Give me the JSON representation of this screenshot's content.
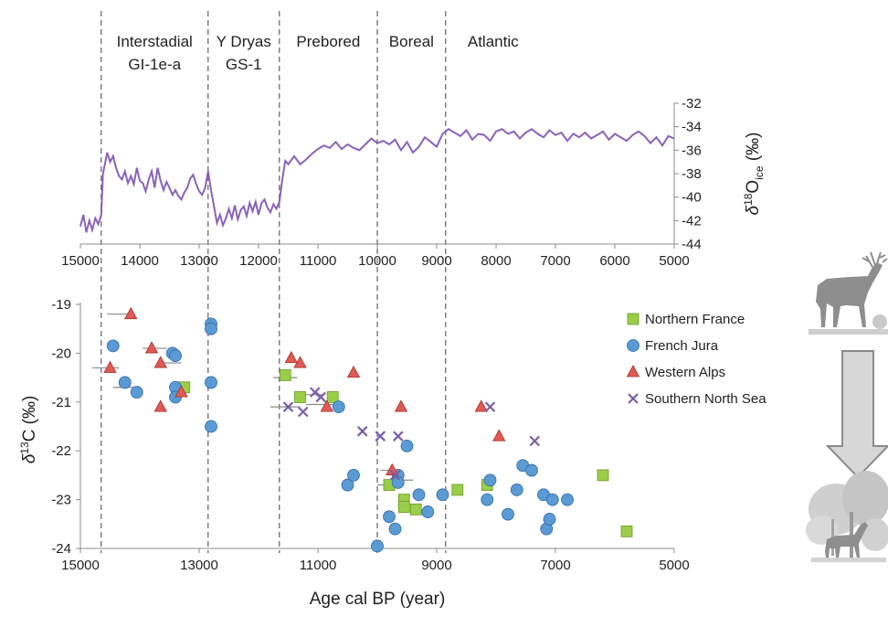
{
  "chart_data": [
    {
      "type": "line",
      "ylabel_main": "δ",
      "ylabel_sup": "18",
      "ylabel_rest": "O",
      "ylabel_sub": "ice",
      "ylabel_unit": " (‰)",
      "xlim": [
        15000,
        5000
      ],
      "ylim": [
        -44,
        -32
      ],
      "x_ticks": [
        "15000",
        "14000",
        "13000",
        "12000",
        "11000",
        "10000",
        "9000",
        "8000",
        "7000",
        "6000",
        "5000"
      ],
      "y_ticks": [
        "-32",
        "-34",
        "-36",
        "-38",
        "-40",
        "-42",
        "-44"
      ],
      "periods": [
        {
          "line1": "Interstadial",
          "line2": "GI-1e-a"
        },
        {
          "line1": "Y Dryas",
          "line2": "GS-1"
        },
        {
          "line1": "Prebored",
          "line2": ""
        },
        {
          "line1": "Boreal",
          "line2": ""
        },
        {
          "line1": "Atlantic",
          "line2": ""
        }
      ],
      "boundaries": [
        14650,
        12850,
        11650,
        10000,
        8850
      ],
      "color": "#8a63b8",
      "series": [
        {
          "x": [
            15000,
            14950,
            14900,
            14850,
            14800,
            14750,
            14700,
            14650,
            14620,
            14580,
            14550,
            14500,
            14450,
            14400,
            14350,
            14300,
            14250,
            14200,
            14150,
            14100,
            14050,
            14000,
            13950,
            13900,
            13850,
            13800,
            13750,
            13700,
            13650,
            13600,
            13550,
            13500,
            13450,
            13400,
            13350,
            13300,
            13250,
            13200,
            13150,
            13100,
            13050,
            13000,
            12950,
            12900,
            12850,
            12800,
            12750,
            12700,
            12650,
            12600,
            12550,
            12500,
            12450,
            12400,
            12350,
            12300,
            12250,
            12200,
            12150,
            12100,
            12050,
            12000,
            11950,
            11900,
            11850,
            11800,
            11750,
            11700,
            11650,
            11600,
            11550,
            11500,
            11400,
            11300,
            11200,
            11100,
            11000,
            10900,
            10800,
            10700,
            10600,
            10500,
            10400,
            10300,
            10200,
            10100,
            10000,
            9900,
            9800,
            9700,
            9600,
            9500,
            9400,
            9300,
            9200,
            9100,
            9000,
            8900,
            8800,
            8700,
            8600,
            8500,
            8400,
            8300,
            8200,
            8100,
            8000,
            7900,
            7800,
            7700,
            7600,
            7500,
            7400,
            7300,
            7200,
            7100,
            7000,
            6900,
            6800,
            6700,
            6600,
            6500,
            6400,
            6300,
            6200,
            6100,
            6000,
            5900,
            5800,
            5700,
            5600,
            5500,
            5400,
            5300,
            5200,
            5100,
            5000
          ],
          "y": [
            -42.5,
            -41.5,
            -43,
            -42,
            -42.8,
            -41.8,
            -42.3,
            -41.5,
            -38,
            -37,
            -36.2,
            -37,
            -36.5,
            -37.5,
            -38.2,
            -38.5,
            -37.8,
            -38.8,
            -38.2,
            -38.9,
            -37.5,
            -38.6,
            -38.8,
            -39.5,
            -38.5,
            -37.8,
            -39.2,
            -37.5,
            -38.6,
            -39.4,
            -38.7,
            -39.2,
            -39.8,
            -39.4,
            -39.9,
            -40.2,
            -39.6,
            -39.2,
            -38.4,
            -38.1,
            -38.9,
            -39.5,
            -39.8,
            -39.2,
            -37.8,
            -39.4,
            -40.8,
            -42.2,
            -41.5,
            -42.4,
            -41.8,
            -41,
            -41.8,
            -40.7,
            -41.9,
            -41.1,
            -40.8,
            -41.6,
            -40.5,
            -41.2,
            -40.4,
            -41.5,
            -40.5,
            -40.2,
            -40.9,
            -41.3,
            -40.6,
            -41,
            -40.4,
            -38.5,
            -36.9,
            -37.2,
            -36.5,
            -37.2,
            -36.8,
            -36.3,
            -35.9,
            -35.6,
            -35.8,
            -35.3,
            -35.9,
            -35.5,
            -35.8,
            -36,
            -35.5,
            -35,
            -35.4,
            -35.2,
            -35.5,
            -35.1,
            -36,
            -35.3,
            -36.2,
            -35.7,
            -34.9,
            -35.3,
            -35.7,
            -34.6,
            -34.2,
            -34.5,
            -34.8,
            -34.3,
            -35.1,
            -34.6,
            -34.7,
            -35.2,
            -34.4,
            -34.2,
            -34.6,
            -34.4,
            -35,
            -34.5,
            -34.2,
            -34.6,
            -34.9,
            -34.3,
            -34.7,
            -34.5,
            -35.2,
            -34.6,
            -34.9,
            -34.5,
            -35,
            -34.7,
            -34.4,
            -35.1,
            -34.6,
            -34.9,
            -35.2,
            -34.7,
            -34.4,
            -34.8,
            -35.4,
            -34.9,
            -35.6,
            -34.8,
            -35
          ]
        }
      ]
    },
    {
      "type": "scatter",
      "xlabel": "Age cal BP (year)",
      "ylabel_main": "δ",
      "ylabel_sup": "13",
      "ylabel_rest": "C (‰)",
      "xlim": [
        15000,
        5000
      ],
      "ylim": [
        -24,
        -19
      ],
      "x_ticks": [
        "15000",
        "13000",
        "11000",
        "9000",
        "7000",
        "5000"
      ],
      "y_ticks": [
        "-19",
        "-20",
        "-21",
        "-22",
        "-23",
        "-24"
      ],
      "legend_position": "top-right",
      "series": [
        {
          "name": "Northern France",
          "marker": "square",
          "color": "#9acd48",
          "points": [
            [
              13250,
              -20.7
            ],
            [
              11550,
              -20.45
            ],
            [
              11300,
              -20.9
            ],
            [
              10750,
              -20.9
            ],
            [
              9800,
              -22.7
            ],
            [
              9550,
              -23
            ],
            [
              9550,
              -23.15
            ],
            [
              9350,
              -23.2
            ],
            [
              8650,
              -22.8
            ],
            [
              8150,
              -22.7
            ],
            [
              6200,
              -22.5
            ],
            [
              5800,
              -23.65
            ]
          ]
        },
        {
          "name": "French Jura",
          "marker": "circle",
          "color": "#5b9bd5",
          "points": [
            [
              14450,
              -19.85
            ],
            [
              14250,
              -20.6
            ],
            [
              14050,
              -20.8
            ],
            [
              13450,
              -20
            ],
            [
              13400,
              -20.05
            ],
            [
              13400,
              -20.7
            ],
            [
              13400,
              -20.9
            ],
            [
              12800,
              -19.4
            ],
            [
              12800,
              -19.5
            ],
            [
              12800,
              -20.6
            ],
            [
              12800,
              -21.5
            ],
            [
              10650,
              -21.1
            ],
            [
              10500,
              -22.7
            ],
            [
              10400,
              -22.5
            ],
            [
              10000,
              -23.95
            ],
            [
              9800,
              -23.35
            ],
            [
              9700,
              -23.6
            ],
            [
              9650,
              -22.5
            ],
            [
              9650,
              -22.65
            ],
            [
              9500,
              -21.9
            ],
            [
              9300,
              -22.9
            ],
            [
              9150,
              -23.25
            ],
            [
              8900,
              -22.9
            ],
            [
              8150,
              -23
            ],
            [
              8100,
              -22.6
            ],
            [
              7800,
              -23.3
            ],
            [
              7650,
              -22.8
            ],
            [
              7550,
              -22.3
            ],
            [
              7400,
              -22.4
            ],
            [
              7200,
              -22.9
            ],
            [
              7150,
              -23.6
            ],
            [
              7100,
              -23.4
            ],
            [
              7050,
              -23
            ],
            [
              6800,
              -23
            ]
          ]
        },
        {
          "name": "Western Alps",
          "marker": "triangle",
          "color": "#e05a55",
          "points": [
            [
              14500,
              -20.3
            ],
            [
              14150,
              -19.2
            ],
            [
              13800,
              -19.9
            ],
            [
              13650,
              -20.2
            ],
            [
              13650,
              -21.1
            ],
            [
              13300,
              -20.8
            ],
            [
              11450,
              -20.1
            ],
            [
              11300,
              -20.2
            ],
            [
              10850,
              -21.1
            ],
            [
              10400,
              -20.4
            ],
            [
              9750,
              -22.4
            ],
            [
              9600,
              -21.1
            ],
            [
              8250,
              -21.1
            ],
            [
              7950,
              -21.7
            ]
          ]
        },
        {
          "name": "Southern North Sea",
          "marker": "cross",
          "color": "#7a5fa6",
          "points": [
            [
              11500,
              -21.1
            ],
            [
              11250,
              -21.2
            ],
            [
              11050,
              -20.8
            ],
            [
              10950,
              -20.9
            ],
            [
              10250,
              -21.6
            ],
            [
              9950,
              -21.7
            ],
            [
              9650,
              -21.7
            ],
            [
              9700,
              -22.5
            ],
            [
              8100,
              -21.1
            ],
            [
              7350,
              -21.8
            ]
          ]
        }
      ]
    }
  ]
}
